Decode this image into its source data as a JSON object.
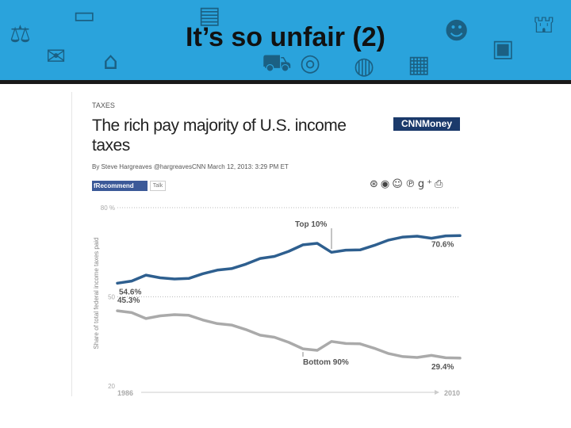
{
  "slide": {
    "title": "It’s so unfair (2)"
  },
  "banner": {
    "icons": [
      "gavel-icon",
      "money-icon",
      "laptop-icon",
      "storefront-icon",
      "house-icon",
      "car-icon",
      "fingerprint-icon",
      "people-icon",
      "capitol-icon",
      "monitor-icon",
      "globe-icon",
      "briefcase-icon"
    ],
    "color": "#2aa3dc"
  },
  "article": {
    "section": "TAXES",
    "headline": "The rich pay majority of U.S. income taxes",
    "byline": "By Steve Hargreaves @hargreavesCNN March 12, 2013: 3:29 PM ET",
    "brand": "CNNMoney",
    "fb_label": "Recommend",
    "talk_label": "Talk"
  },
  "chart_data": {
    "type": "line",
    "ylabel": "Share of total federal income taxes paid",
    "ylim": [
      20,
      80
    ],
    "y_ticks": [
      20,
      50,
      80
    ],
    "y_tick_labels": [
      "20",
      "50",
      "80 %"
    ],
    "x": [
      1986,
      1987,
      1988,
      1989,
      1990,
      1991,
      1992,
      1993,
      1994,
      1995,
      1996,
      1997,
      1998,
      1999,
      2000,
      2001,
      2002,
      2003,
      2004,
      2005,
      2006,
      2007,
      2008,
      2009,
      2010
    ],
    "x_labels": [
      "1986",
      "2010"
    ],
    "series": [
      {
        "name": "Top 10%",
        "color": "#2e5f8f",
        "values": [
          54.6,
          55.3,
          57.3,
          56.4,
          56.0,
          56.2,
          57.8,
          59.0,
          59.5,
          61.0,
          62.9,
          63.6,
          65.3,
          67.5,
          68.0,
          65.0,
          65.7,
          65.8,
          67.3,
          69.1,
          70.1,
          70.4,
          69.7,
          70.5,
          70.6
        ]
      },
      {
        "name": "Bottom 90%",
        "color": "#aaaaaa",
        "values": [
          45.3,
          44.7,
          42.7,
          43.6,
          44.0,
          43.8,
          42.2,
          41.0,
          40.5,
          39.0,
          37.1,
          36.4,
          34.7,
          32.5,
          32.0,
          35.0,
          34.3,
          34.2,
          32.7,
          30.9,
          29.9,
          29.6,
          30.3,
          29.5,
          29.4
        ]
      }
    ],
    "annotations": [
      {
        "text": "54.6%",
        "series": "Top 10%",
        "x": 1986
      },
      {
        "text": "70.6%",
        "series": "Top 10%",
        "x": 2010
      },
      {
        "text": "45.3%",
        "series": "Bottom 90%",
        "x": 1986
      },
      {
        "text": "29.4%",
        "series": "Bottom 90%",
        "x": 2010
      }
    ],
    "grid": true
  }
}
